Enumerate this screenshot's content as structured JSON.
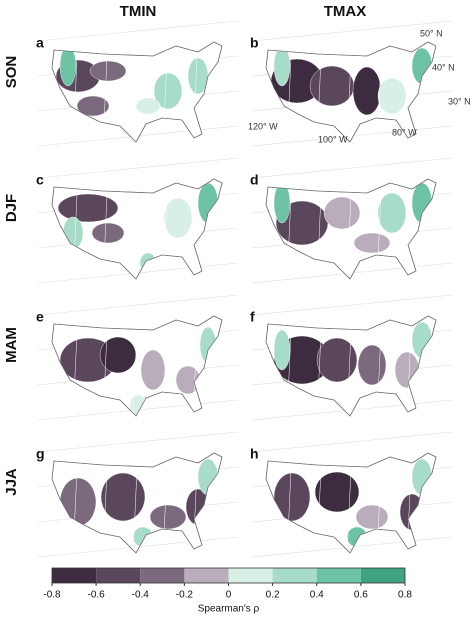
{
  "columns": [
    "TMIN",
    "TMAX"
  ],
  "rows": [
    "SON",
    "DJF",
    "MAM",
    "JJA"
  ],
  "panels": [
    "a",
    "b",
    "c",
    "d",
    "e",
    "f",
    "g",
    "h"
  ],
  "graticule": {
    "lat_labels": [
      "50° N",
      "40° N",
      "30° N"
    ],
    "lon_labels": [
      "120° W",
      "100° W",
      "80° W"
    ]
  },
  "colorbar": {
    "colors": [
      "#3d2b3f",
      "#5a475c",
      "#7b697d",
      "#b9adbb",
      "#d8efe6",
      "#a6dcc8",
      "#6fc3a5",
      "#3fa37f"
    ],
    "ticks": [
      -0.8,
      -0.6,
      -0.4,
      -0.2,
      0,
      0.2,
      0.4,
      0.6,
      0.8
    ],
    "label": "Spearman's ρ"
  }
}
